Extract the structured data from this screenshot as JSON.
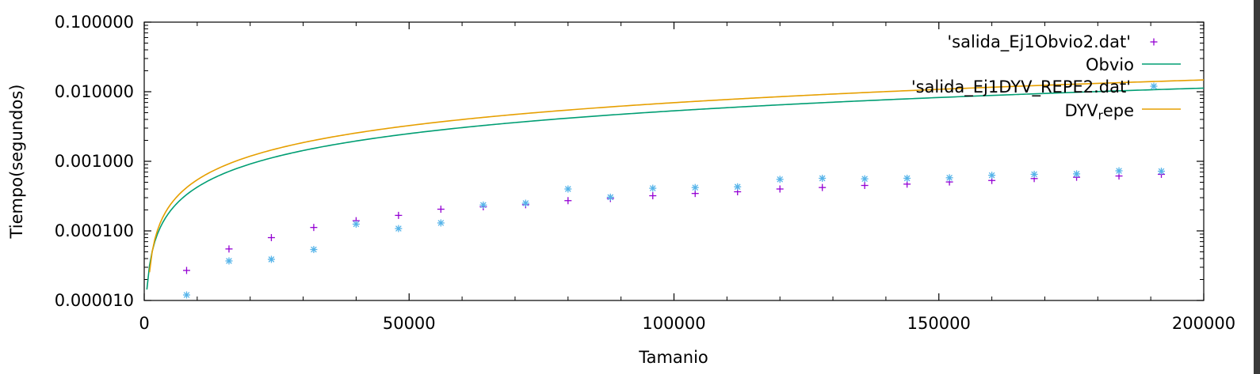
{
  "chart_data": {
    "type": "line",
    "title": "",
    "xlabel": "Tamanio",
    "ylabel": "Tiempo(segundos)",
    "xlim": [
      0,
      200000
    ],
    "ylim": [
      1e-05,
      0.1
    ],
    "y_scale": "log",
    "grid": false,
    "legend_position": "top-right",
    "x_ticks": [
      {
        "value": 0,
        "label": "0"
      },
      {
        "value": 50000,
        "label": "50000"
      },
      {
        "value": 100000,
        "label": "100000"
      },
      {
        "value": 150000,
        "label": "150000"
      },
      {
        "value": 200000,
        "label": "200000"
      }
    ],
    "y_ticks": [
      {
        "value": 1e-05,
        "label": "0.000010"
      },
      {
        "value": 0.0001,
        "label": "0.000100"
      },
      {
        "value": 0.001,
        "label": "0.001000"
      },
      {
        "value": 0.01,
        "label": "0.010000"
      },
      {
        "value": 0.1,
        "label": "0.100000"
      }
    ],
    "series": [
      {
        "name": "'salida_Ej1Obvio2.dat'",
        "kind": "points",
        "marker": "+",
        "color": "#9400d3",
        "x": [
          8000,
          16000,
          24000,
          32000,
          40000,
          48000,
          56000,
          64000,
          72000,
          80000,
          88000,
          96000,
          104000,
          112000,
          120000,
          128000,
          136000,
          144000,
          152000,
          160000,
          168000,
          176000,
          184000,
          192000
        ],
        "y": [
          2.7e-05,
          5.5e-05,
          8e-05,
          0.000112,
          0.00014,
          0.000167,
          0.000205,
          0.000222,
          0.000238,
          0.000272,
          0.000292,
          0.00032,
          0.000345,
          0.000365,
          0.0004,
          0.00042,
          0.00045,
          0.00047,
          0.000505,
          0.00053,
          0.000565,
          0.00059,
          0.000615,
          0.00065
        ]
      },
      {
        "name": "Obvio",
        "kind": "line",
        "color": "#009e73",
        "fit": {
          "a": 3.2e-09,
          "b": 0.0
        }
      },
      {
        "name": "'salida_Ej1DYV_REPE2.dat'",
        "kind": "points",
        "marker": "*",
        "color": "#56b4e9",
        "x": [
          8000,
          16000,
          24000,
          32000,
          40000,
          48000,
          56000,
          64000,
          72000,
          80000,
          88000,
          96000,
          104000,
          112000,
          120000,
          128000,
          136000,
          144000,
          152000,
          160000,
          168000,
          176000,
          184000,
          192000
        ],
        "y": [
          1.2e-05,
          3.7e-05,
          3.9e-05,
          5.4e-05,
          0.000125,
          0.000108,
          0.00013,
          0.000235,
          0.00025,
          0.0004,
          0.000305,
          0.00041,
          0.00042,
          0.00043,
          0.00055,
          0.00057,
          0.00056,
          0.00057,
          0.00058,
          0.00063,
          0.00065,
          0.00066,
          0.00073,
          0.00072
        ]
      },
      {
        "name": "DYV",
        "name_subscript": "r",
        "name_suffix": "epe",
        "kind": "line",
        "color": "#e69f00",
        "fit": {
          "a": 4.2e-09,
          "b": -1.64e-05
        }
      }
    ]
  }
}
